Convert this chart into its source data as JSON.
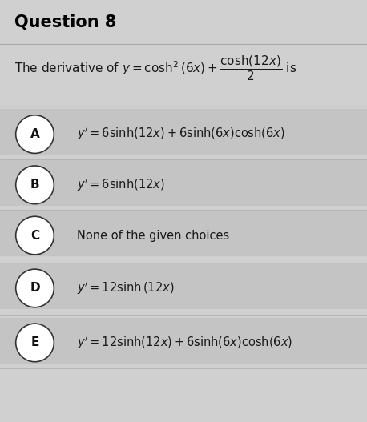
{
  "title": "Question 8",
  "background_color": "#d0d0d0",
  "question_text": "The derivative of $y=\\cosh^{2}(6x)+\\dfrac{\\cosh(12x)}{2}$ is",
  "options": [
    {
      "label": "A",
      "formula": "$y'=6\\sinh(12x)+6\\sinh(6x)\\cosh(6x)$"
    },
    {
      "label": "B",
      "formula": "$y'=6\\sinh(12x)$"
    },
    {
      "label": "C",
      "formula": "None of the given choices"
    },
    {
      "label": "D",
      "formula": "$y'=12\\sinh\\left(12x\\right)$"
    },
    {
      "label": "E",
      "formula": "$y'=12\\sinh(12x)+6\\sinh(6x)\\cosh(6x)$"
    }
  ],
  "title_color": "#000000",
  "text_color": "#1a1a1a",
  "line_color": "#aaaaaa",
  "option_stripe_color": "#c4c4c4",
  "circle_color": "#ffffff",
  "circle_edge_color": "#333333"
}
